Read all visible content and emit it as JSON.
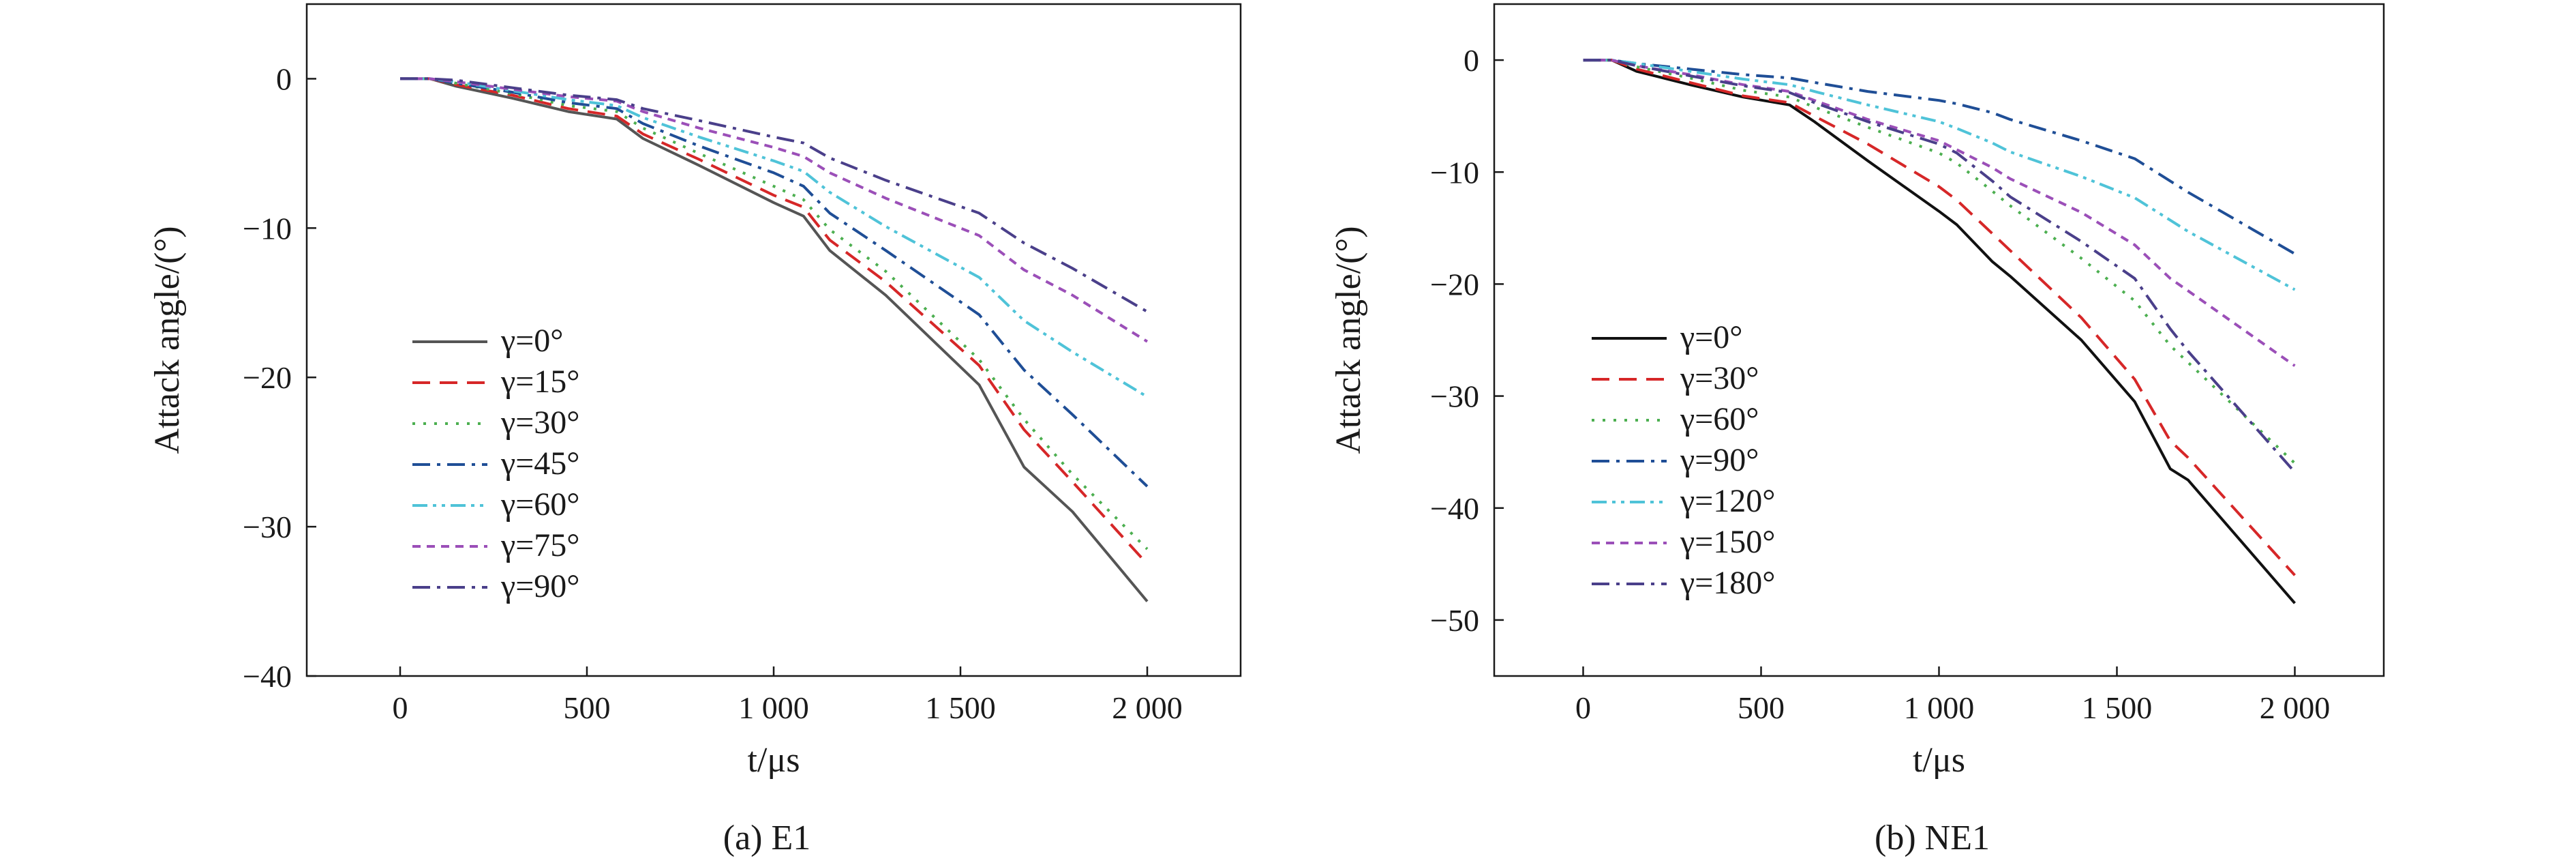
{
  "chart_data": [
    {
      "type": "line",
      "caption": "(a) E1",
      "xlabel": "t/μs",
      "ylabel": "Attack angle/(°)",
      "xlim": [
        -250,
        2250
      ],
      "ylim": [
        -40,
        5
      ],
      "xticks": [
        0,
        500,
        1000,
        1500,
        2000
      ],
      "xtick_labels": [
        "0",
        "500",
        "1 000",
        "1 500",
        "2 000"
      ],
      "yticks": [
        0,
        -10,
        -20,
        -30,
        -40
      ],
      "ytick_labels": [
        "0",
        "−10",
        "−20",
        "−30",
        "−40"
      ],
      "grid": false,
      "legend_position": "lower-left",
      "series": [
        {
          "name": "γ=0°",
          "color": "#555555",
          "dash": "solid",
          "x": [
            0,
            80,
            150,
            300,
            450,
            580,
            650,
            800,
            1000,
            1080,
            1150,
            1300,
            1550,
            1670,
            1800,
            2000
          ],
          "y": [
            0,
            0,
            -0.5,
            -1.3,
            -2.2,
            -2.7,
            -4,
            -5.8,
            -8.3,
            -9.2,
            -11.5,
            -14.5,
            -20.5,
            -26,
            -29,
            -35
          ]
        },
        {
          "name": "γ=15°",
          "color": "#d62728",
          "dash": "dashed",
          "x": [
            0,
            80,
            150,
            300,
            450,
            580,
            650,
            800,
            1000,
            1080,
            1150,
            1300,
            1550,
            1670,
            1800,
            2000
          ],
          "y": [
            0,
            0,
            -0.4,
            -1.1,
            -2,
            -2.5,
            -3.7,
            -5.4,
            -7.8,
            -8.6,
            -10.8,
            -13.6,
            -19.2,
            -23.5,
            -27,
            -32.5
          ]
        },
        {
          "name": "γ=30°",
          "color": "#4caf50",
          "dash": "dotted",
          "x": [
            0,
            80,
            150,
            300,
            450,
            580,
            650,
            800,
            1000,
            1080,
            1150,
            1300,
            1550,
            1670,
            1800,
            2000
          ],
          "y": [
            0,
            0,
            -0.3,
            -1,
            -1.8,
            -2.2,
            -3.3,
            -5,
            -7.2,
            -8.1,
            -10.1,
            -12.9,
            -18.8,
            -22.8,
            -26.5,
            -31.5
          ]
        },
        {
          "name": "γ=45°",
          "color": "#1f4e96",
          "dash": "dashdot",
          "x": [
            0,
            80,
            150,
            300,
            450,
            580,
            650,
            800,
            1000,
            1080,
            1150,
            1300,
            1550,
            1670,
            1800,
            2000
          ],
          "y": [
            0,
            0,
            -0.3,
            -0.9,
            -1.6,
            -2,
            -3,
            -4.5,
            -6.3,
            -7.2,
            -9,
            -11.5,
            -15.8,
            -19.5,
            -22.5,
            -27.3
          ]
        },
        {
          "name": "γ=60°",
          "color": "#4fc3d8",
          "dash": "dashdotdot",
          "x": [
            0,
            80,
            150,
            300,
            450,
            580,
            650,
            800,
            1000,
            1080,
            1150,
            1300,
            1550,
            1670,
            1800,
            2000
          ],
          "y": [
            0,
            0,
            -0.2,
            -0.8,
            -1.4,
            -1.8,
            -2.6,
            -3.9,
            -5.5,
            -6.2,
            -7.6,
            -9.9,
            -13.3,
            -16.2,
            -18.3,
            -21.3
          ]
        },
        {
          "name": "γ=75°",
          "color": "#9b4fb8",
          "dash": "shortdash",
          "x": [
            0,
            80,
            150,
            300,
            450,
            580,
            650,
            800,
            1000,
            1080,
            1150,
            1300,
            1550,
            1670,
            1800,
            2000
          ],
          "y": [
            0,
            0,
            -0.2,
            -0.7,
            -1.2,
            -1.5,
            -2.2,
            -3.3,
            -4.6,
            -5.2,
            -6.3,
            -8,
            -10.5,
            -12.8,
            -14.5,
            -17.6
          ]
        },
        {
          "name": "γ=90°",
          "color": "#4a3f8a",
          "dash": "dashdot",
          "x": [
            0,
            80,
            150,
            300,
            450,
            580,
            650,
            800,
            1000,
            1080,
            1150,
            1300,
            1550,
            1670,
            1800,
            2000
          ],
          "y": [
            0,
            0,
            -0.1,
            -0.6,
            -1.1,
            -1.4,
            -2,
            -2.8,
            -3.9,
            -4.3,
            -5.3,
            -6.8,
            -9,
            -11,
            -12.7,
            -15.6
          ]
        }
      ]
    },
    {
      "type": "line",
      "caption": "(b) NE1",
      "xlabel": "t/μs",
      "ylabel": "Attack angle/(°)",
      "xlim": [
        -250,
        2250
      ],
      "ylim": [
        -55,
        5
      ],
      "xticks": [
        0,
        500,
        1000,
        1500,
        2000
      ],
      "xtick_labels": [
        "0",
        "500",
        "1 000",
        "1 500",
        "2 000"
      ],
      "yticks": [
        0,
        -10,
        -20,
        -30,
        -40,
        -50
      ],
      "ytick_labels": [
        "0",
        "−10",
        "−20",
        "−30",
        "−40",
        "−50"
      ],
      "grid": false,
      "legend_position": "lower-left",
      "series": [
        {
          "name": "γ=0°",
          "color": "#111111",
          "dash": "solid",
          "x": [
            0,
            80,
            150,
            300,
            450,
            580,
            650,
            800,
            1000,
            1050,
            1150,
            1200,
            1400,
            1550,
            1650,
            1700,
            2000
          ],
          "y": [
            0,
            0,
            -1,
            -2.2,
            -3.3,
            -4,
            -5.5,
            -9,
            -13.5,
            -14.7,
            -18,
            -19.3,
            -25,
            -30.5,
            -36.5,
            -37.5,
            -48.5
          ]
        },
        {
          "name": "γ=30°",
          "color": "#d62728",
          "dash": "dashed",
          "x": [
            0,
            80,
            150,
            300,
            450,
            580,
            650,
            800,
            1000,
            1050,
            1150,
            1200,
            1400,
            1550,
            1650,
            1700,
            2000
          ],
          "y": [
            0,
            0,
            -0.8,
            -2,
            -3.2,
            -3.8,
            -5,
            -7.5,
            -11.3,
            -12.5,
            -15.5,
            -17,
            -23,
            -28.5,
            -34,
            -35.5,
            -46
          ]
        },
        {
          "name": "γ=60°",
          "color": "#4caf50",
          "dash": "dotted",
          "x": [
            0,
            80,
            150,
            300,
            450,
            580,
            650,
            800,
            1000,
            1050,
            1150,
            1200,
            1400,
            1550,
            1650,
            1700,
            2000
          ],
          "y": [
            0,
            0,
            -0.6,
            -1.6,
            -2.7,
            -3.3,
            -4.2,
            -6,
            -8.3,
            -9.2,
            -11.7,
            -13,
            -17.7,
            -21.5,
            -25.5,
            -27,
            -36
          ]
        },
        {
          "name": "γ=90°",
          "color": "#1f4e96",
          "dash": "dashdot",
          "x": [
            0,
            80,
            150,
            300,
            450,
            580,
            650,
            800,
            1000,
            1050,
            1150,
            1200,
            1400,
            1550,
            1650,
            1700,
            2000
          ],
          "y": [
            0,
            0,
            -0.3,
            -0.8,
            -1.3,
            -1.6,
            -2,
            -2.8,
            -3.6,
            -3.9,
            -4.7,
            -5.3,
            -7.2,
            -8.8,
            -10.8,
            -11.8,
            -17.3
          ]
        },
        {
          "name": "γ=120°",
          "color": "#4fc3d8",
          "dash": "dashdotdot",
          "x": [
            0,
            80,
            150,
            300,
            450,
            580,
            650,
            800,
            1000,
            1050,
            1150,
            1200,
            1400,
            1550,
            1650,
            1700,
            2000
          ],
          "y": [
            0,
            0,
            -0.3,
            -1,
            -1.7,
            -2.2,
            -2.8,
            -4,
            -5.5,
            -6.1,
            -7.4,
            -8.2,
            -10.4,
            -12.3,
            -14.3,
            -15.3,
            -20.5
          ]
        },
        {
          "name": "γ=150°",
          "color": "#9b4fb8",
          "dash": "shortdash",
          "x": [
            0,
            80,
            150,
            300,
            450,
            580,
            650,
            800,
            1000,
            1050,
            1150,
            1200,
            1400,
            1550,
            1650,
            1700,
            2000
          ],
          "y": [
            0,
            0,
            -0.5,
            -1.3,
            -2.2,
            -2.8,
            -3.6,
            -5.3,
            -7.2,
            -8,
            -9.6,
            -10.6,
            -13.6,
            -16.5,
            -19.5,
            -20.6,
            -27.3
          ]
        },
        {
          "name": "γ=180°",
          "color": "#4a3f8a",
          "dash": "dashdot",
          "x": [
            0,
            80,
            150,
            300,
            450,
            580,
            650,
            800,
            1000,
            1050,
            1150,
            1200,
            1400,
            1550,
            1650,
            1700,
            2000
          ],
          "y": [
            0,
            0,
            -0.5,
            -1.4,
            -2.3,
            -2.9,
            -3.8,
            -5.5,
            -7.5,
            -8.3,
            -10.8,
            -12.2,
            -16.2,
            -19.5,
            -24,
            -26,
            -36.8
          ]
        }
      ]
    }
  ]
}
